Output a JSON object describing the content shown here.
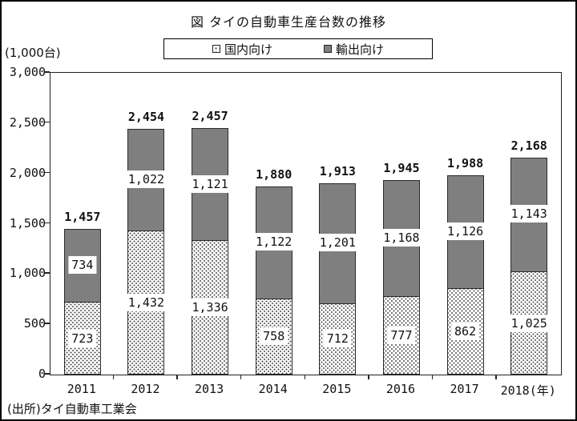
{
  "title": "図 タイの自動車生産台数の推移",
  "unit_label": "(1,000台)",
  "source": "(出所)タイ自動車工業会",
  "legend": {
    "domestic_label": "国内向け",
    "export_label": "輸出向け"
  },
  "colors": {
    "export_fill": "#7f7f7f",
    "bar_border": "#2b2b2b",
    "axis_color": "#222222"
  },
  "chart_data": {
    "type": "bar",
    "stacked": true,
    "title": "図 タイの自動車生産台数の推移",
    "ylabel": "(1,000台)",
    "xlabel": "年",
    "categories": [
      "2011",
      "2012",
      "2013",
      "2014",
      "2015",
      "2016",
      "2017",
      "2018(年)"
    ],
    "series": [
      {
        "name": "国内向け",
        "style": "dotted-pattern",
        "values": [
          723,
          1432,
          1336,
          758,
          712,
          777,
          862,
          1025
        ]
      },
      {
        "name": "輸出向け",
        "style": "solid-gray",
        "color": "#7f7f7f",
        "values": [
          734,
          1022,
          1121,
          1122,
          1201,
          1168,
          1126,
          1143
        ]
      }
    ],
    "totals": [
      1457,
      2454,
      2457,
      1880,
      1913,
      1945,
      1988,
      2168
    ],
    "ylim": [
      0,
      3000
    ],
    "ytick_step": 500,
    "ytick_labels": [
      "0",
      "500",
      "1,000",
      "1,500",
      "2,000",
      "2,500",
      "3,000"
    ],
    "grid": false,
    "legend_position": "top"
  }
}
